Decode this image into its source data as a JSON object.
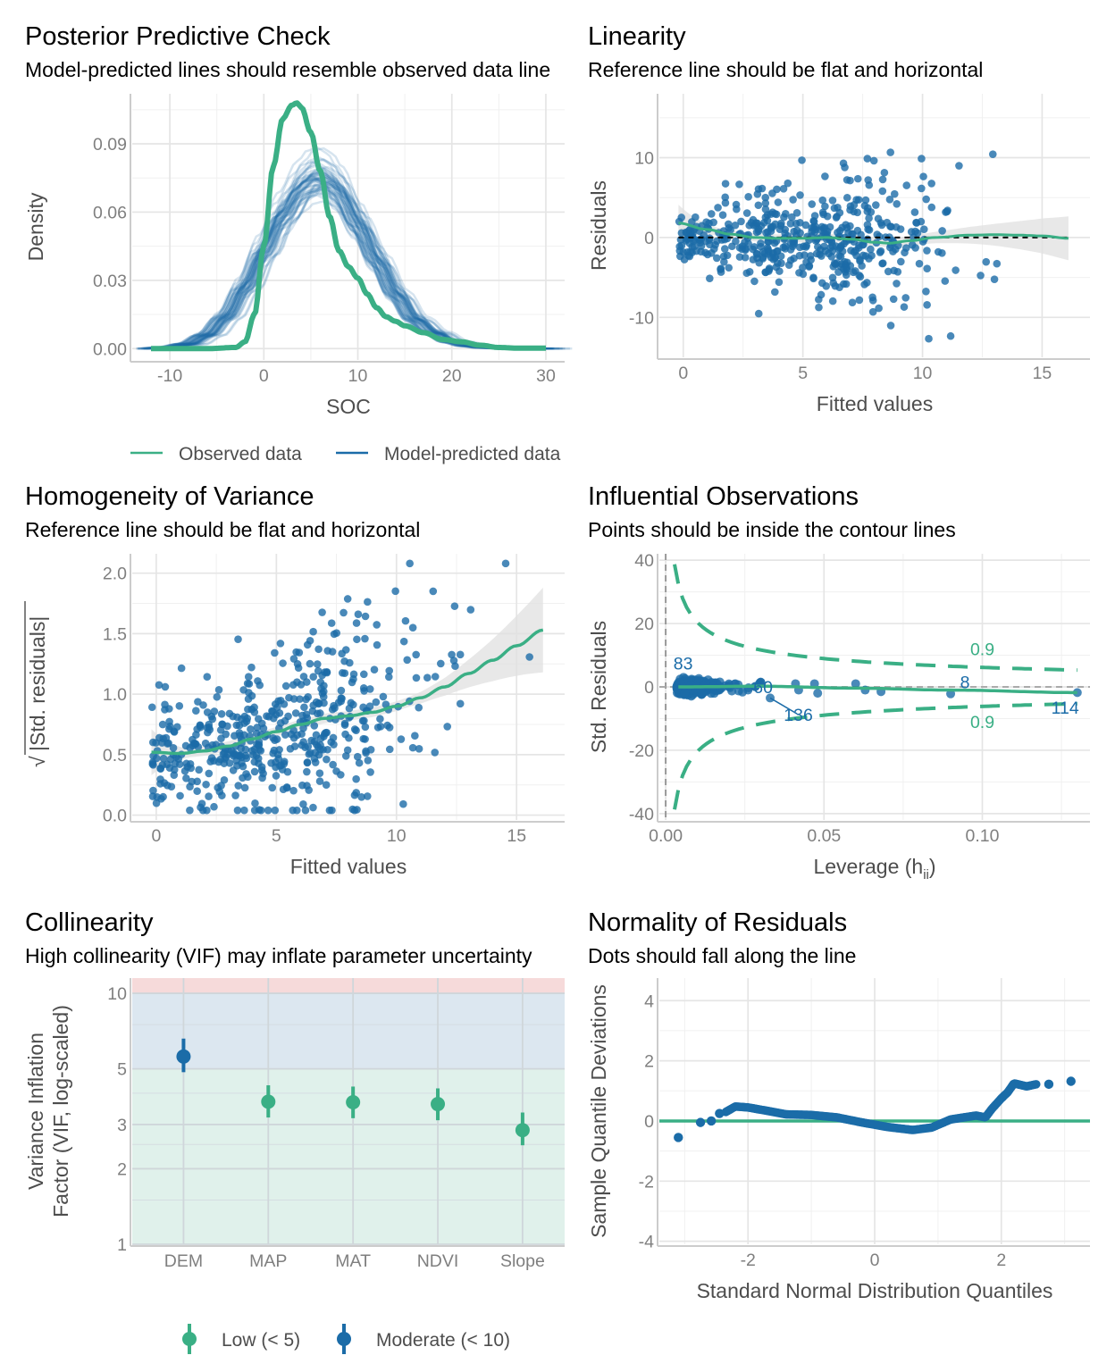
{
  "colors": {
    "green": "#3aaf85",
    "blue": "#1b6ca8",
    "ribbon": "#e0e0e0",
    "band_high": "#f6dada",
    "band_moderate": "#dce7f0",
    "band_low": "#e0f1eb"
  },
  "chart_data": [
    {
      "id": "ppc",
      "type": "line",
      "title": "Posterior Predictive Check",
      "subtitle": "Model-predicted lines should resemble observed data line",
      "xlabel": "SOC",
      "ylabel": "Density",
      "xlim": [
        -14,
        32
      ],
      "ylim": [
        -0.005,
        0.112
      ],
      "x_ticks": [
        -10,
        0,
        10,
        20,
        30
      ],
      "x_tick_labels": [
        "-10",
        "0",
        "10",
        "20",
        "30"
      ],
      "y_ticks": [
        0.0,
        0.03,
        0.06,
        0.09
      ],
      "y_tick_labels": [
        "0.00",
        "0.03",
        "0.06",
        "0.09"
      ],
      "legend": [
        "Observed data",
        "Model-predicted data"
      ],
      "legend_position": "bottom",
      "series": [
        {
          "name": "Observed data",
          "x": [
            -12,
            -6,
            -3,
            -2,
            -1,
            0,
            1,
            2,
            3,
            3.5,
            4,
            5,
            6,
            7,
            8,
            9,
            10,
            11,
            12,
            13,
            14,
            15,
            17,
            19,
            21,
            23,
            25,
            27,
            30
          ],
          "y": [
            0.0,
            0.0,
            0.0005,
            0.003,
            0.015,
            0.045,
            0.08,
            0.101,
            0.107,
            0.108,
            0.106,
            0.095,
            0.078,
            0.058,
            0.043,
            0.036,
            0.031,
            0.024,
            0.018,
            0.014,
            0.012,
            0.01,
            0.007,
            0.004,
            0.003,
            0.0015,
            0.0005,
            0.0002,
            0.0002
          ]
        },
        {
          "name": "Model-predicted data (mean)",
          "x": [
            -12,
            -10,
            -8,
            -6,
            -4,
            -2,
            0,
            2,
            4,
            5,
            6,
            7,
            8,
            10,
            12,
            14,
            16,
            18,
            20,
            22,
            24,
            26,
            30
          ],
          "y": [
            0.0,
            0.0005,
            0.002,
            0.006,
            0.014,
            0.027,
            0.043,
            0.059,
            0.071,
            0.075,
            0.076,
            0.074,
            0.069,
            0.055,
            0.039,
            0.024,
            0.013,
            0.007,
            0.003,
            0.0012,
            0.0004,
            0.0001,
            0.0
          ]
        }
      ],
      "n_draws": 50
    },
    {
      "id": "linearity",
      "type": "scatter",
      "title": "Linearity",
      "subtitle": "Reference line should be flat and horizontal",
      "xlabel": "Fitted values",
      "ylabel": "Residuals",
      "xlim": [
        -1,
        17
      ],
      "ylim": [
        -15,
        18
      ],
      "x_ticks": [
        0,
        5,
        10,
        15
      ],
      "x_tick_labels": [
        "0",
        "5",
        "10",
        "15"
      ],
      "y_ticks": [
        -10,
        0,
        10
      ],
      "y_tick_labels": [
        "-10",
        "0",
        "10"
      ],
      "reference_line": 0,
      "smooth": {
        "x": [
          -0.2,
          1,
          2,
          3,
          4,
          5,
          6,
          7,
          8,
          8.6,
          9.5,
          10.5,
          12,
          13,
          14,
          15,
          16.1
        ],
        "y": [
          1.8,
          1.0,
          0.4,
          0.0,
          -0.1,
          -0.1,
          0.0,
          -0.2,
          -0.6,
          -0.7,
          -0.4,
          0.0,
          0.3,
          0.35,
          0.3,
          0.2,
          -0.1
        ]
      },
      "n_points": 500
    },
    {
      "id": "homogeneity",
      "type": "scatter",
      "title": "Homogeneity of Variance",
      "subtitle": "Reference line should be flat and horizontal",
      "xlabel": "Fitted values",
      "ylabel": "|Std. residuals|",
      "ylabel_sqrt": "√",
      "xlim": [
        -1,
        17
      ],
      "ylim": [
        -0.04,
        2.16
      ],
      "x_ticks": [
        0,
        5,
        10,
        15
      ],
      "x_tick_labels": [
        "0",
        "5",
        "10",
        "15"
      ],
      "y_ticks": [
        0.0,
        0.5,
        1.0,
        1.5,
        2.0
      ],
      "y_tick_labels": [
        "0.0",
        "0.5",
        "1.0",
        "1.5",
        "2.0"
      ],
      "smooth": {
        "x": [
          -0.2,
          1,
          2,
          3,
          4,
          5,
          6,
          7,
          8,
          9,
          10,
          11,
          12,
          13,
          14,
          15,
          16.1
        ],
        "y": [
          0.52,
          0.51,
          0.53,
          0.57,
          0.63,
          0.69,
          0.75,
          0.8,
          0.82,
          0.85,
          0.9,
          0.97,
          1.06,
          1.17,
          1.28,
          1.4,
          1.53
        ]
      },
      "n_points": 500
    },
    {
      "id": "influential",
      "type": "scatter",
      "title": "Influential Observations",
      "subtitle": "Points should be inside the contour lines",
      "xlabel": "Leverage (h",
      "xlabel_sub": "ii",
      "xlabel_close": ")",
      "ylabel": "Std. Residuals",
      "xlim": [
        -0.002,
        0.134
      ],
      "ylim": [
        -42,
        42
      ],
      "x_ticks": [
        0.0,
        0.05,
        0.1
      ],
      "x_tick_labels": [
        "0.00",
        "0.05",
        "0.10"
      ],
      "y_ticks": [
        -40,
        -20,
        0,
        20,
        40
      ],
      "y_tick_labels": [
        "-40",
        "-20",
        "0",
        "20",
        "40"
      ],
      "contour_level": "0.9",
      "labels": [
        {
          "text": "83",
          "x": 0.0055,
          "y": 2.8
        },
        {
          "text": "60",
          "x": 0.0285,
          "y": -0.4
        },
        {
          "text": "136",
          "x": 0.0385,
          "y": -3.5
        },
        {
          "text": "8",
          "x": 0.0945,
          "y": 0.4
        },
        {
          "text": "114",
          "x": 0.1205,
          "y": -2.6
        }
      ],
      "contour_labels": [
        {
          "text": "0.9",
          "x": 0.1,
          "y": 4.5
        },
        {
          "text": "0.9",
          "x": 0.1,
          "y": -4.5
        }
      ]
    },
    {
      "id": "collinearity",
      "type": "scatter",
      "title": "Collinearity",
      "subtitle": "High collinearity (VIF) may inflate parameter uncertainty",
      "xlabel": "",
      "ylabel_line1": "Variance Inflation",
      "ylabel_line2": "Factor (VIF, log-scaled)",
      "categories": [
        "DEM",
        "MAP",
        "MAT",
        "NDVI",
        "Slope"
      ],
      "values": [
        5.6,
        3.7,
        3.68,
        3.62,
        2.85
      ],
      "ci_low": [
        4.85,
        3.2,
        3.18,
        3.12,
        2.48
      ],
      "ci_high": [
        6.6,
        4.3,
        4.25,
        4.18,
        3.35
      ],
      "groups": [
        "Moderate (< 10)",
        "Low (< 5)",
        "Low (< 5)",
        "Low (< 5)",
        "Low (< 5)"
      ],
      "ylim": [
        1,
        11.5
      ],
      "y_scale": "log",
      "y_ticks": [
        1,
        2,
        3,
        5,
        10
      ],
      "y_tick_labels": [
        "1",
        "2",
        "3",
        "5",
        "10"
      ],
      "legend": [
        "Low (< 5)",
        "Moderate (< 10)"
      ],
      "legend_position": "bottom",
      "bands": [
        {
          "name": "low",
          "from": 1,
          "to": 5
        },
        {
          "name": "moderate",
          "from": 5,
          "to": 10
        },
        {
          "name": "high",
          "from": 10,
          "to": 11.5
        }
      ]
    },
    {
      "id": "normality",
      "type": "scatter",
      "title": "Normality of Residuals",
      "subtitle": "Dots should fall along the line",
      "xlabel": "Standard Normal Distribution Quantiles",
      "ylabel": "Sample Quantile Deviations",
      "xlim": [
        -3.4,
        3.4
      ],
      "ylim": [
        -4.1,
        4.75
      ],
      "x_ticks": [
        -2,
        0,
        2
      ],
      "x_tick_labels": [
        "-2",
        "0",
        "2"
      ],
      "y_ticks": [
        -4,
        -2,
        0,
        2,
        4
      ],
      "y_tick_labels": [
        "-4",
        "-2",
        "0",
        "2",
        "4"
      ],
      "reference_line": 0,
      "curve": {
        "x": [
          -2.35,
          -2.2,
          -2.0,
          -1.6,
          -1.4,
          -1.0,
          -0.6,
          -0.2,
          0.2,
          0.6,
          0.9,
          1.2,
          1.6,
          1.75,
          1.85,
          2.0,
          2.1,
          2.2,
          2.4,
          2.55
        ],
        "y": [
          0.3,
          0.48,
          0.45,
          0.3,
          0.22,
          0.2,
          0.12,
          -0.05,
          -0.2,
          -0.3,
          -0.22,
          0.05,
          0.18,
          0.12,
          0.4,
          0.75,
          0.95,
          1.25,
          1.15,
          1.22
        ]
      },
      "outliers": [
        {
          "x": -3.1,
          "y": -0.55
        },
        {
          "x": -2.75,
          "y": -0.05
        },
        {
          "x": -2.58,
          "y": 0.0
        },
        {
          "x": -2.45,
          "y": 0.25
        },
        {
          "x": 2.75,
          "y": 1.22
        },
        {
          "x": 3.1,
          "y": 1.32
        }
      ]
    }
  ]
}
